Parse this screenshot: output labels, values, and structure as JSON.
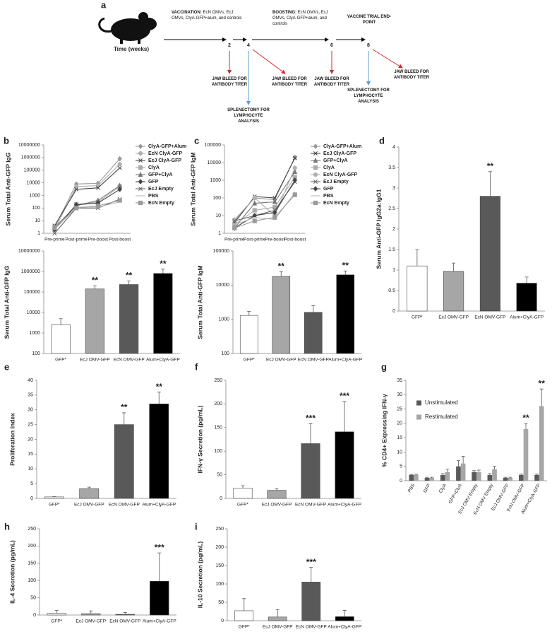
{
  "timeline": {
    "panel_label": "a",
    "axis_label": "Time (weeks)",
    "phases": [
      {
        "heading": "VACCINATION:",
        "text": "EcN OMVs, EcJ OMVs, ClyA-GFP+alum, and controls"
      },
      {
        "heading": "BOOSTING:",
        "text": "EcN OMVs, EcJ OMVs, ClyA-GFP+alum, and controls"
      },
      {
        "heading": "VACCINE TRIAL END-POINT"
      }
    ],
    "weeks": [
      "2",
      "4",
      "6",
      "8"
    ],
    "actions": [
      "JAW BLEED FOR ANTIBODY TITER",
      "JAW BLEED FOR ANTIBODY TITER",
      "SPLENECTOMY FOR LYMPHOCYTE ANALYSIS",
      "JAW BLEED FOR ANTIBODY TITER",
      "JAW BLEED FOR ANTIBODY TITER",
      "SPLENECTOMY FOR LYMPHOCYTE ANALYSIS"
    ]
  },
  "chart_data": [
    {
      "type": "line",
      "panel_label": "b",
      "y_label": "Serum Total Anti-GFP IgG",
      "log_scale": true,
      "categories": [
        "Pre-prime",
        "Post-prime",
        "Pre-boost",
        "Post-boost"
      ],
      "ylim": [
        1,
        10000000
      ],
      "yticks": [
        1,
        10,
        100,
        1000,
        10000,
        100000,
        1000000,
        10000000
      ],
      "series": [
        {
          "name": "ClyA-GFP+Alum",
          "color": "#999999",
          "marker": "diamond",
          "values": [
            3,
            8000,
            9000,
            800000
          ]
        },
        {
          "name": "EcN ClyA-GFP",
          "color": "#b0b0b0",
          "marker": "circle",
          "values": [
            2,
            5000,
            6000,
            300000
          ]
        },
        {
          "name": "EcJ ClyA-GFP",
          "color": "#444444",
          "marker": "x",
          "values": [
            4,
            3000,
            4000,
            150000
          ]
        },
        {
          "name": "ClyA",
          "color": "#aaaaaa",
          "marker": "square",
          "values": [
            2,
            200,
            300,
            5000
          ]
        },
        {
          "name": "GFP+ClyA",
          "color": "#777777",
          "marker": "triangle",
          "values": [
            3,
            150,
            400,
            6000
          ]
        },
        {
          "name": "GFP",
          "color": "#444444",
          "marker": "diamond",
          "values": [
            2,
            180,
            250,
            3000
          ]
        },
        {
          "name": "EcJ Empty",
          "color": "#666666",
          "marker": "x",
          "values": [
            1,
            100,
            100,
            500
          ]
        },
        {
          "name": "PBS",
          "color": "#bbbbbb",
          "marker": "dash",
          "values": [
            2,
            120,
            120,
            300
          ]
        },
        {
          "name": "EcN Empty",
          "color": "#999999",
          "marker": "square",
          "values": [
            3,
            100,
            150,
            400
          ]
        }
      ]
    },
    {
      "type": "bar",
      "y_label": "Serum Total Anti-GFP IgG",
      "log_scale": true,
      "categories": [
        "GFP*",
        "EcJ OMV-GFP",
        "EcN OMV-GFP",
        "Alum+ClyA-GFP"
      ],
      "values": [
        2500,
        140000,
        230000,
        800000
      ],
      "errors": [
        2500,
        60000,
        120000,
        500000
      ],
      "colors": [
        "#ffffff",
        "#a6a6a6",
        "#595959",
        "#000000"
      ],
      "significance": [
        null,
        "**",
        "**",
        "**"
      ],
      "ylim": [
        100,
        10000000
      ],
      "yticks": [
        100,
        1000,
        10000,
        100000,
        1000000,
        10000000
      ]
    },
    {
      "type": "line",
      "panel_label": "c",
      "y_label": "Serum Total Anti-GFP IgM",
      "log_scale": true,
      "categories": [
        "Pre-prime",
        "Post-prime",
        "Pre-boost",
        "Post-boost"
      ],
      "ylim": [
        1,
        100000
      ],
      "yticks": [
        1,
        10,
        100,
        1000,
        10000,
        100000
      ],
      "series": [
        {
          "name": "ClyA-GFP+Alum",
          "color": "#999999",
          "marker": "diamond",
          "values": [
            5,
            100,
            80,
            20000
          ]
        },
        {
          "name": "EcJ ClyA-GFP",
          "color": "#444444",
          "marker": "x",
          "values": [
            4,
            120,
            100,
            18000
          ]
        },
        {
          "name": "GFP+ClyA",
          "color": "#777777",
          "marker": "triangle",
          "values": [
            2,
            50,
            60,
            3000
          ]
        },
        {
          "name": "ClyA",
          "color": "#aaaaaa",
          "marker": "square",
          "values": [
            3,
            20,
            30,
            1500
          ]
        },
        {
          "name": "EcN ClyA-GFP",
          "color": "#b0b0b0",
          "marker": "circle",
          "values": [
            6,
            100,
            10,
            5000
          ]
        },
        {
          "name": "EcJ Empty",
          "color": "#666666",
          "marker": "x",
          "values": [
            5,
            10,
            20,
            800
          ]
        },
        {
          "name": "GFP",
          "color": "#444444",
          "marker": "diamond",
          "values": [
            2,
            10,
            15,
            1000
          ]
        },
        {
          "name": "PBS",
          "color": "#bbbbbb",
          "marker": "dash",
          "values": [
            3,
            8,
            6,
            200
          ]
        },
        {
          "name": "EcN Empty",
          "color": "#999999",
          "marker": "square",
          "values": [
            2,
            5,
            8,
            150
          ]
        }
      ]
    },
    {
      "type": "bar",
      "y_label": "Serum Total Anti-GFP IgM",
      "log_scale": true,
      "categories": [
        "GFP*",
        "EcJ OMV-GFP",
        "EcN OMV-GFP",
        "Alum+ClyA-GFP"
      ],
      "values": [
        1300,
        18000,
        1600,
        20000
      ],
      "errors": [
        400,
        7000,
        900,
        6000
      ],
      "colors": [
        "#ffffff",
        "#a6a6a6",
        "#595959",
        "#000000"
      ],
      "significance": [
        null,
        "**",
        null,
        "**"
      ],
      "ylim": [
        100,
        100000
      ],
      "yticks": [
        100,
        1000,
        10000,
        100000
      ]
    },
    {
      "type": "bar",
      "panel_label": "d",
      "y_label": "Serum Anti-GFP IgG2a:IgG1",
      "categories": [
        "GFP*",
        "EcJ OMV-GFP",
        "EcN OMV-GFP",
        "Alum+ClyA-GFP"
      ],
      "values": [
        1.1,
        0.97,
        2.8,
        0.68
      ],
      "errors": [
        0.4,
        0.2,
        0.6,
        0.15
      ],
      "colors": [
        "#ffffff",
        "#a6a6a6",
        "#595959",
        "#000000"
      ],
      "significance": [
        null,
        null,
        "**",
        null
      ],
      "ylim": [
        0,
        4
      ],
      "yticks": [
        0,
        0.5,
        1,
        1.5,
        2,
        2.5,
        3,
        3.5,
        4
      ]
    },
    {
      "type": "bar",
      "panel_label": "e",
      "y_label": "Proliferation Index",
      "categories": [
        "GFP*",
        "EcJ OMV-GFP",
        "EcN OMV-GFP",
        "Alum+ClyA-GFP"
      ],
      "values": [
        0.5,
        3.3,
        25,
        32
      ],
      "errors": [
        0.1,
        0.5,
        4,
        4
      ],
      "colors": [
        "#ffffff",
        "#a6a6a6",
        "#595959",
        "#000000"
      ],
      "significance": [
        null,
        null,
        "**",
        "**"
      ],
      "ylim": [
        0,
        40
      ],
      "yticks": [
        0,
        5,
        10,
        15,
        20,
        25,
        30,
        35,
        40
      ]
    },
    {
      "type": "bar",
      "panel_label": "f",
      "y_label": "IFN-γ Secretion (pg/mL)",
      "categories": [
        "GFP*",
        "EcJ OMV-GFP",
        "EcN OMV-GFP",
        "Alum+ClyA-GFP"
      ],
      "values": [
        22,
        17,
        116,
        141
      ],
      "errors": [
        5,
        4,
        42,
        64
      ],
      "colors": [
        "#ffffff",
        "#a6a6a6",
        "#595959",
        "#000000"
      ],
      "significance": [
        null,
        null,
        "***",
        "***"
      ],
      "ylim": [
        0,
        250
      ],
      "yticks": [
        0,
        50,
        100,
        150,
        200,
        250
      ]
    },
    {
      "type": "grouped_bar",
      "panel_label": "g",
      "y_label": "% CD4+ Expressing IFN-γ",
      "categories": [
        "PBS",
        "GFP",
        "ClyA",
        "GFP+ClyA",
        "EcJ OMV Empty",
        "EcN OMV Empty",
        "EcJ OMV-GFP",
        "EcN OMV-GFP",
        "Alum+ClyA-GFP"
      ],
      "ylim": [
        0,
        35
      ],
      "yticks": [
        0,
        5,
        10,
        15,
        20,
        25,
        30,
        35
      ],
      "series": [
        {
          "name": "Unstimulated",
          "color": "#595959",
          "values": [
            2,
            1,
            2,
            5,
            3,
            2,
            1,
            2,
            2
          ],
          "errors": [
            0.2,
            0.2,
            0.5,
            2,
            0.5,
            0.5,
            0.2,
            0.3,
            0.3
          ]
        },
        {
          "name": "Restimulated",
          "color": "#a6a6a6",
          "values": [
            2,
            1,
            3,
            6,
            3,
            4,
            1,
            18,
            26
          ],
          "errors": [
            0.2,
            0.2,
            1,
            2.5,
            0.7,
            1,
            0.2,
            2,
            6
          ],
          "significance": [
            null,
            null,
            null,
            null,
            null,
            null,
            null,
            "**",
            "**"
          ]
        }
      ]
    },
    {
      "type": "bar",
      "panel_label": "h",
      "y_label": "IL-4 Secretion (pg/mL)",
      "categories": [
        "GFP*",
        "EcJ OMV-GFP",
        "EcN OMV-GFP",
        "Alum+ClyA-GFP"
      ],
      "values": [
        5,
        4,
        2,
        98
      ],
      "errors": [
        8,
        8,
        5,
        82
      ],
      "colors": [
        "#ffffff",
        "#a6a6a6",
        "#595959",
        "#000000"
      ],
      "significance": [
        null,
        null,
        null,
        "***"
      ],
      "ylim": [
        0,
        250
      ],
      "yticks": [
        0,
        50,
        100,
        150,
        200,
        250
      ]
    },
    {
      "type": "bar",
      "panel_label": "i",
      "y_label": "IL-10 Secretion (pg/mL)",
      "categories": [
        "GFP*",
        "EcJ OMV-GFP",
        "EcN OMV-GFP",
        "Alum+ClyA-GFP"
      ],
      "values": [
        27,
        10,
        105,
        11
      ],
      "errors": [
        33,
        20,
        40,
        17
      ],
      "colors": [
        "#ffffff",
        "#a6a6a6",
        "#595959",
        "#000000"
      ],
      "significance": [
        null,
        null,
        "***",
        null
      ],
      "ylim": [
        0,
        250
      ],
      "yticks": [
        0,
        50,
        100,
        150,
        200,
        250
      ]
    }
  ]
}
